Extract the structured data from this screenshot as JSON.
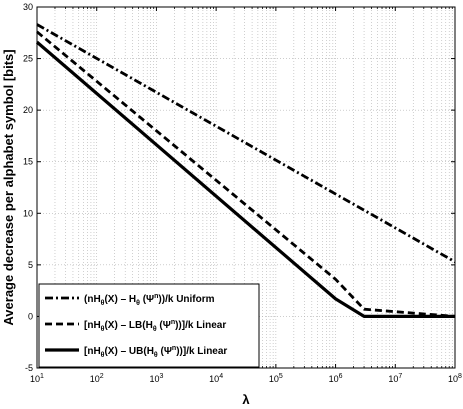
{
  "chart_data": {
    "type": "line",
    "xscale": "log",
    "xlim": [
      10,
      100000000
    ],
    "ylim": [
      -5,
      30
    ],
    "grid": true,
    "xlabel": "λ",
    "ylabel": "Average decrease per alphabet symbol [bits]",
    "xticks": [
      {
        "value": 10,
        "base": "10",
        "exp": "1"
      },
      {
        "value": 100,
        "base": "10",
        "exp": "2"
      },
      {
        "value": 1000,
        "base": "10",
        "exp": "3"
      },
      {
        "value": 10000,
        "base": "10",
        "exp": "4"
      },
      {
        "value": 100000,
        "base": "10",
        "exp": "5"
      },
      {
        "value": 1000000,
        "base": "10",
        "exp": "6"
      },
      {
        "value": 10000000,
        "base": "10",
        "exp": "7"
      },
      {
        "value": 100000000,
        "base": "10",
        "exp": "8"
      }
    ],
    "yticks": [
      "-5",
      "0",
      "5",
      "10",
      "15",
      "20",
      "25",
      "30"
    ],
    "legend_position": "bottom-left",
    "series": [
      {
        "legend_parts": [
          {
            "t": "(nH",
            "sub": false
          },
          {
            "t": "θ",
            "sub": true
          },
          {
            "t": "(X) – H",
            "sub": false
          },
          {
            "t": "θ",
            "sub": true
          },
          {
            "t": " (Ψ",
            "sub": false
          },
          {
            "t": "n",
            "sup": true
          },
          {
            "t": "))/k Uniform",
            "sub": false
          }
        ],
        "style": "dashdot",
        "x": [
          10,
          100000000
        ],
        "y": [
          28.3,
          5.3
        ]
      },
      {
        "legend_parts": [
          {
            "t": "[nH",
            "sub": false
          },
          {
            "t": "θ",
            "sub": true
          },
          {
            "t": "(X) – LB(H",
            "sub": false
          },
          {
            "t": "θ",
            "sub": true
          },
          {
            "t": " (Ψ",
            "sub": false
          },
          {
            "t": "n",
            "sup": true
          },
          {
            "t": "))]/k Linear",
            "sub": false
          }
        ],
        "style": "dashed",
        "x": [
          10,
          1000000,
          3000000,
          100000000
        ],
        "y": [
          27.6,
          3.6,
          0.7,
          0
        ]
      },
      {
        "legend_parts": [
          {
            "t": "[nH",
            "sub": false
          },
          {
            "t": "θ",
            "sub": true
          },
          {
            "t": "(X) – UB(H",
            "sub": false
          },
          {
            "t": "θ",
            "sub": true
          },
          {
            "t": " (Ψ",
            "sub": false
          },
          {
            "t": "n",
            "sup": true
          },
          {
            "t": "))]/k Linear",
            "sub": false
          }
        ],
        "style": "solid",
        "x": [
          10,
          1000000,
          3000000,
          100000000
        ],
        "y": [
          26.6,
          1.7,
          0,
          0
        ]
      }
    ]
  }
}
